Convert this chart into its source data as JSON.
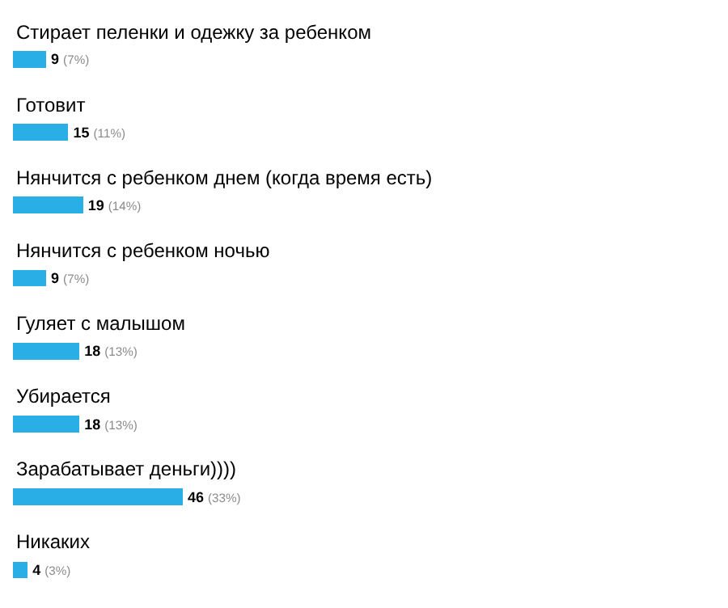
{
  "chart_data": {
    "type": "bar",
    "orientation": "horizontal",
    "categories": [
      "Стирает пеленки и одежку за ребенком",
      "Готовит",
      "Нянчится с ребенком днем (когда время есть)",
      "Нянчится с ребенком ночью",
      "Гуляет с малышом",
      "Убирается",
      "Зарабатывает деньги))))",
      "Никаких"
    ],
    "values": [
      9,
      15,
      19,
      9,
      18,
      18,
      46,
      4
    ],
    "value_labels": [
      "9 (7%)",
      "15 (11%)",
      "19 (14%)",
      "9 (7%)",
      "18 (13%)",
      "18 (13%)",
      "46 (33%)",
      "4 (3%)"
    ],
    "color": "#29aee6"
  }
}
